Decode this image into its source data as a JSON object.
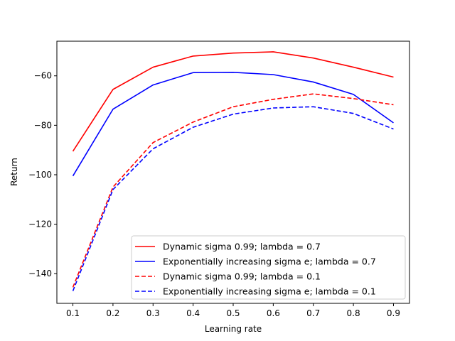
{
  "chart_data": {
    "type": "line",
    "title": "",
    "xlabel": "Learning rate",
    "ylabel": "Return",
    "x": [
      0.1,
      0.2,
      0.3,
      0.4,
      0.5,
      0.6,
      0.7,
      0.8,
      0.9
    ],
    "xlim": [
      0.06,
      0.94
    ],
    "ylim": [
      -152,
      -46
    ],
    "xticks": [
      0.1,
      0.2,
      0.3,
      0.4,
      0.5,
      0.6,
      0.7,
      0.8,
      0.9
    ],
    "xtick_labels": [
      "0.1",
      "0.2",
      "0.3",
      "0.4",
      "0.5",
      "0.6",
      "0.7",
      "0.8",
      "0.9"
    ],
    "yticks": [
      -140,
      -120,
      -100,
      -80,
      -60
    ],
    "ytick_labels": [
      "−140",
      "−120",
      "−100",
      "−80",
      "−60"
    ],
    "grid": false,
    "legend_position": "lower-right",
    "series": [
      {
        "name": "Dynamic sigma 0.99; lambda = 0.7",
        "color": "#ff0000",
        "style": "solid",
        "values": [
          -90.5,
          -65.5,
          -56.5,
          -52.0,
          -50.8,
          -50.3,
          -52.8,
          -56.5,
          -60.5
        ]
      },
      {
        "name": "Exponentially increasing sigma e; lambda = 0.7",
        "color": "#0000ff",
        "style": "solid",
        "values": [
          -100.5,
          -73.5,
          -63.7,
          -58.7,
          -58.6,
          -59.5,
          -62.5,
          -67.5,
          -79.0
        ]
      },
      {
        "name": "Dynamic sigma 0.99; lambda = 0.1",
        "color": "#ff0000",
        "style": "dashed",
        "values": [
          -145.5,
          -105.0,
          -87.0,
          -78.7,
          -72.5,
          -69.5,
          -67.3,
          -69.2,
          -71.7
        ]
      },
      {
        "name": "Exponentially increasing sigma e; lambda = 0.1",
        "color": "#0000ff",
        "style": "dashed",
        "values": [
          -147.0,
          -106.0,
          -89.5,
          -80.8,
          -75.5,
          -73.0,
          -72.5,
          -75.2,
          -81.5
        ]
      }
    ]
  }
}
